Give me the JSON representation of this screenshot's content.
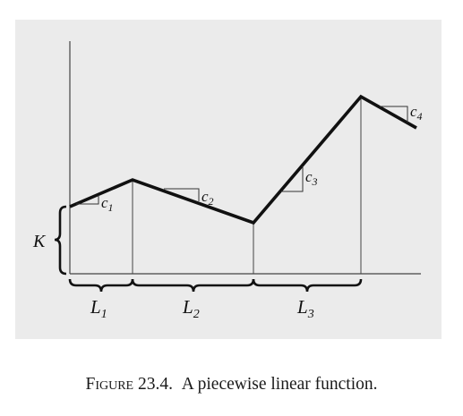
{
  "figure": {
    "caption_head": "Figure 23.4.",
    "caption_text": "A piecewise linear function.",
    "labels": {
      "K": "K",
      "L1": {
        "base": "L",
        "sub": "1"
      },
      "L2": {
        "base": "L",
        "sub": "2"
      },
      "L3": {
        "base": "L",
        "sub": "3"
      },
      "c1": {
        "base": "c",
        "sub": "1"
      },
      "c2": {
        "base": "c",
        "sub": "2"
      },
      "c3": {
        "base": "c",
        "sub": "3"
      },
      "c4": {
        "base": "c",
        "sub": "4"
      }
    },
    "colors": {
      "panel": "#ebebeb",
      "line": "#111111"
    }
  }
}
